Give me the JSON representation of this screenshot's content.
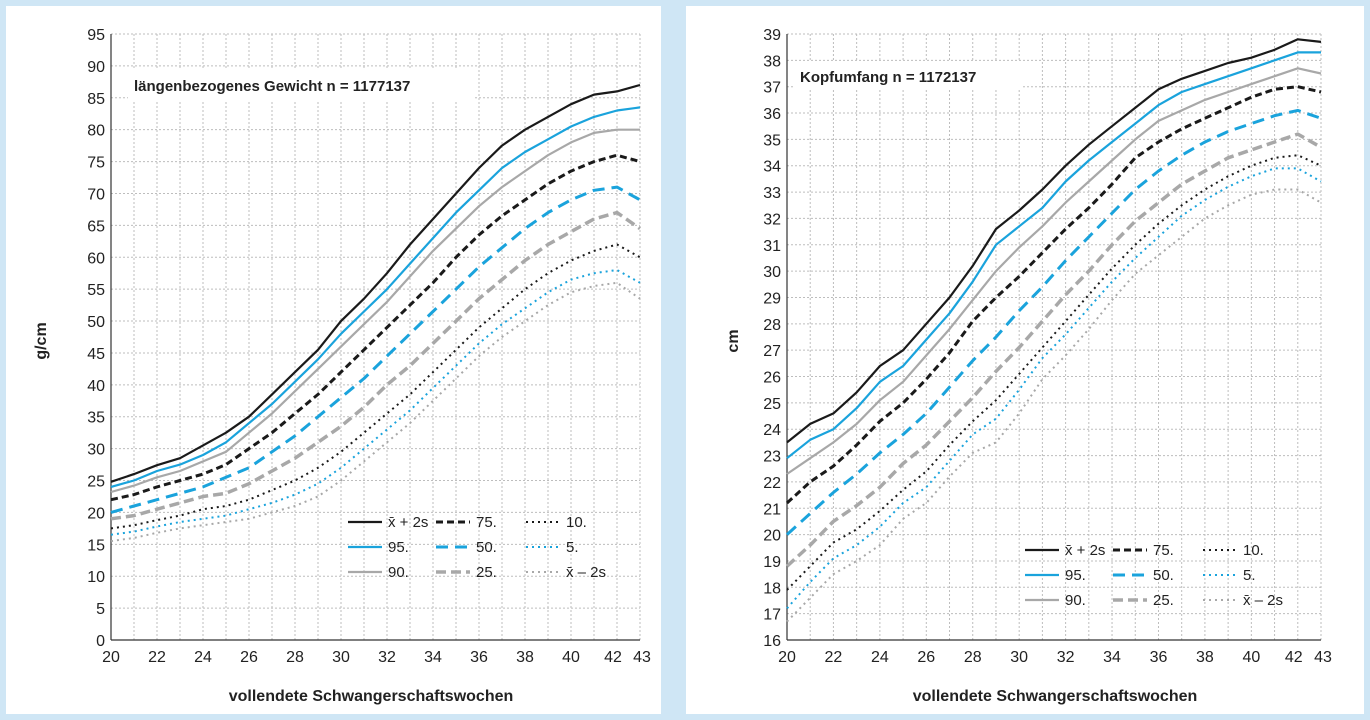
{
  "colors": {
    "black": "#1a1a1a",
    "blue": "#1aa3dc",
    "grey": "#a8a8a8",
    "background": "#cfe6f5"
  },
  "legend": [
    {
      "label": "x̄ + 2s",
      "key": "m2s"
    },
    {
      "label": "75.",
      "key": "p75"
    },
    {
      "label": "10.",
      "key": "p10"
    },
    {
      "label": "95.",
      "key": "p95"
    },
    {
      "label": "50.",
      "key": "p50"
    },
    {
      "label": "5.",
      "key": "p5"
    },
    {
      "label": "90.",
      "key": "p90"
    },
    {
      "label": "25.",
      "key": "p25"
    },
    {
      "label": "x̄ – 2s",
      "key": "mm2s"
    }
  ],
  "chart_data": [
    {
      "type": "line",
      "title": "längenbezogenes Gewicht n = 1177137",
      "xlabel": "vollendete Schwangerschaftswochen",
      "ylabel": "g/cm",
      "xlim": [
        20,
        43
      ],
      "ylim": [
        0,
        95
      ],
      "x_ticks": [
        20,
        22,
        24,
        26,
        28,
        30,
        32,
        34,
        36,
        38,
        40,
        42,
        43
      ],
      "y_ticks": [
        0,
        5,
        10,
        15,
        20,
        25,
        30,
        35,
        40,
        45,
        50,
        55,
        60,
        65,
        70,
        75,
        80,
        85,
        90,
        95
      ],
      "x": [
        20,
        21,
        22,
        23,
        24,
        25,
        26,
        27,
        28,
        29,
        30,
        31,
        32,
        33,
        34,
        35,
        36,
        37,
        38,
        39,
        40,
        41,
        42,
        43
      ],
      "series": [
        {
          "name": "x̄ + 2s",
          "key": "m2s",
          "values": [
            24.8,
            26,
            27.4,
            28.5,
            30.5,
            32.5,
            35,
            38.5,
            42,
            45.5,
            50,
            53.5,
            57.5,
            62,
            66,
            70,
            74,
            77.5,
            80,
            82,
            84,
            85.5,
            86,
            87
          ]
        },
        {
          "name": "95.",
          "key": "p95",
          "values": [
            24,
            25,
            26.5,
            27.5,
            29,
            31,
            34,
            37,
            40.5,
            44,
            48,
            51.5,
            55,
            59,
            63,
            67,
            70.5,
            74,
            76.5,
            78.5,
            80.5,
            82,
            83,
            83.5
          ]
        },
        {
          "name": "90.",
          "key": "p90",
          "values": [
            23.2,
            24.2,
            25.5,
            26.5,
            28,
            29.5,
            32.5,
            35.5,
            39,
            42.5,
            46,
            49.5,
            53,
            57,
            61,
            64.5,
            68,
            71,
            73.5,
            76,
            78,
            79.5,
            80,
            80
          ]
        },
        {
          "name": "75.",
          "key": "p75",
          "values": [
            22,
            22.8,
            24,
            25,
            26,
            27.5,
            30,
            32.5,
            35.5,
            38.5,
            42,
            45.5,
            49,
            52.5,
            56,
            60,
            63.5,
            66.5,
            69,
            71.5,
            73.5,
            75,
            76,
            75
          ]
        },
        {
          "name": "50.",
          "key": "p50",
          "values": [
            20,
            21,
            22,
            23,
            24,
            25.5,
            27,
            29.5,
            32,
            35,
            38,
            41,
            44.5,
            48,
            51.5,
            55,
            58.5,
            61.5,
            64.5,
            67,
            69,
            70.5,
            71,
            69
          ]
        },
        {
          "name": "25.",
          "key": "p25",
          "values": [
            19,
            19.5,
            20.5,
            21.5,
            22.5,
            23,
            24.5,
            26.5,
            28.5,
            31,
            33.5,
            36.5,
            40,
            43,
            46.5,
            50,
            53.5,
            56.5,
            59.5,
            62,
            64,
            66,
            67,
            64.5
          ]
        },
        {
          "name": "10.",
          "key": "p10",
          "values": [
            17.5,
            18,
            18.8,
            19.5,
            20.5,
            21,
            22,
            23.5,
            25,
            27,
            29.5,
            32.5,
            35.5,
            38.5,
            42,
            45.5,
            49,
            52,
            55,
            57.5,
            59.5,
            61,
            62,
            60
          ]
        },
        {
          "name": "5.",
          "key": "p5",
          "values": [
            16.5,
            17,
            17.8,
            18.5,
            19,
            19.5,
            20.5,
            21.5,
            22.8,
            24.5,
            27,
            30,
            33,
            36,
            39.5,
            43,
            46.5,
            49.5,
            52,
            54.5,
            56.5,
            57.5,
            58,
            56
          ]
        },
        {
          "name": "x̄ – 2s",
          "key": "mm2s",
          "values": [
            15.5,
            16,
            16.8,
            17.5,
            18,
            18.5,
            19,
            20,
            21,
            22.5,
            25,
            28,
            31,
            34,
            37.5,
            41,
            44.5,
            47.5,
            50,
            52.5,
            54.5,
            55.5,
            56,
            53.5
          ]
        }
      ]
    },
    {
      "type": "line",
      "title": "Kopfumfang n = 1172137",
      "xlabel": "vollendete Schwangerschaftswochen",
      "ylabel": "cm",
      "xlim": [
        20,
        43
      ],
      "ylim": [
        16,
        39
      ],
      "x_ticks": [
        20,
        22,
        24,
        26,
        28,
        30,
        32,
        34,
        36,
        38,
        40,
        42,
        43
      ],
      "y_ticks": [
        16,
        17,
        18,
        19,
        20,
        21,
        22,
        23,
        24,
        25,
        26,
        27,
        28,
        29,
        30,
        31,
        32,
        33,
        34,
        35,
        36,
        37,
        38,
        39
      ],
      "x": [
        20,
        21,
        22,
        23,
        24,
        25,
        26,
        27,
        28,
        29,
        30,
        31,
        32,
        33,
        34,
        35,
        36,
        37,
        38,
        39,
        40,
        41,
        42,
        43
      ],
      "series": [
        {
          "name": "x̄ + 2s",
          "key": "m2s",
          "values": [
            23.5,
            24.2,
            24.6,
            25.4,
            26.4,
            27,
            28,
            29,
            30.2,
            31.6,
            32.3,
            33.1,
            34,
            34.8,
            35.5,
            36.2,
            36.9,
            37.3,
            37.6,
            37.9,
            38.1,
            38.4,
            38.8,
            38.7
          ]
        },
        {
          "name": "95.",
          "key": "p95",
          "values": [
            22.9,
            23.6,
            24,
            24.8,
            25.8,
            26.4,
            27.4,
            28.4,
            29.6,
            31,
            31.7,
            32.4,
            33.4,
            34.2,
            34.9,
            35.6,
            36.3,
            36.8,
            37.1,
            37.4,
            37.7,
            38,
            38.3,
            38.3
          ]
        },
        {
          "name": "90.",
          "key": "p90",
          "values": [
            22.3,
            22.9,
            23.5,
            24.2,
            25.1,
            25.8,
            26.8,
            27.8,
            28.9,
            30,
            30.9,
            31.7,
            32.6,
            33.4,
            34.2,
            35,
            35.7,
            36.1,
            36.5,
            36.8,
            37.1,
            37.4,
            37.7,
            37.5
          ]
        },
        {
          "name": "75.",
          "key": "p75",
          "values": [
            21.2,
            22,
            22.6,
            23.4,
            24.3,
            25,
            25.9,
            26.9,
            28.1,
            29,
            29.8,
            30.7,
            31.6,
            32.4,
            33.3,
            34.3,
            34.9,
            35.4,
            35.8,
            36.2,
            36.6,
            36.9,
            37,
            36.8
          ]
        },
        {
          "name": "50.",
          "key": "p50",
          "values": [
            20,
            20.8,
            21.6,
            22.3,
            23.1,
            23.8,
            24.6,
            25.6,
            26.6,
            27.5,
            28.5,
            29.4,
            30.4,
            31.3,
            32.2,
            33.1,
            33.8,
            34.4,
            34.9,
            35.3,
            35.6,
            35.9,
            36.1,
            35.8
          ]
        },
        {
          "name": "25.",
          "key": "p25",
          "values": [
            18.8,
            19.6,
            20.5,
            21.1,
            21.8,
            22.7,
            23.4,
            24.3,
            25.2,
            26.2,
            27.1,
            28.1,
            29.1,
            30,
            31,
            31.9,
            32.6,
            33.3,
            33.8,
            34.3,
            34.6,
            34.9,
            35.2,
            34.7
          ]
        },
        {
          "name": "10.",
          "key": "p10",
          "values": [
            17.9,
            18.8,
            19.7,
            20.2,
            20.9,
            21.7,
            22.4,
            23.4,
            24.3,
            25.1,
            26.1,
            27.1,
            28.1,
            29.1,
            30.1,
            31,
            31.8,
            32.5,
            33.1,
            33.6,
            34,
            34.3,
            34.4,
            34
          ]
        },
        {
          "name": "5.",
          "key": "p5",
          "values": [
            17.2,
            18.2,
            19.1,
            19.6,
            20.3,
            21.2,
            21.8,
            22.8,
            23.8,
            24.4,
            25.5,
            26.7,
            27.6,
            28.6,
            29.6,
            30.5,
            31.3,
            32.1,
            32.7,
            33.2,
            33.6,
            33.9,
            33.9,
            33.4
          ]
        },
        {
          "name": "x̄ – 2s",
          "key": "mm2s",
          "values": [
            16.7,
            17.6,
            18.5,
            19,
            19.6,
            20.6,
            21.2,
            22.2,
            23.1,
            23.5,
            24.6,
            25.9,
            26.8,
            27.8,
            28.9,
            29.9,
            30.6,
            31.3,
            32,
            32.5,
            32.9,
            33.1,
            33.1,
            32.6
          ]
        }
      ]
    }
  ]
}
